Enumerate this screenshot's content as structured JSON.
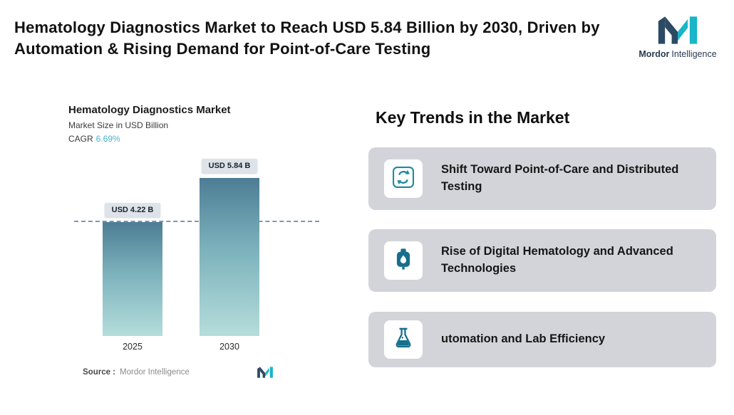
{
  "header": {
    "title": "Hematology Diagnostics Market to Reach USD 5.84 Billion by 2030, Driven by Automation & Rising Demand for Point-of-Care Testing",
    "brand_bold": "Mordor",
    "brand_regular": "Intelligence"
  },
  "chart": {
    "title": "Hematology Diagnostics Market",
    "subtitle": "Market Size in USD Billion",
    "cagr_label": "CAGR",
    "cagr_value": "6.69%",
    "source_label": "Source :",
    "source_value": "Mordor Intelligence"
  },
  "chart_data": {
    "type": "bar",
    "title": "Hematology Diagnostics Market",
    "ylabel": "Market Size in USD Billion",
    "categories": [
      "2025",
      "2030"
    ],
    "values": [
      4.22,
      5.84
    ],
    "bar_labels": [
      "USD 4.22 B",
      "USD 5.84 B"
    ],
    "cagr": "6.69%",
    "reference_line": 4.22,
    "ylim": [
      0,
      6.5
    ],
    "legend": "none",
    "grid": "off",
    "colors": {
      "bar_top": "#4d7d95",
      "bar_bottom": "#b5dddb",
      "accent_teal": "#47b7c7",
      "label_box": "#dde3e9"
    }
  },
  "trends": {
    "heading": "Key Trends in the Market",
    "items": [
      {
        "icon": "cycle-arrows-icon",
        "text": "Shift Toward Point-of-Care and Distributed Testing"
      },
      {
        "icon": "blood-bag-icon",
        "text": "Rise of Digital Hematology and Advanced Technologies"
      },
      {
        "icon": "flask-icon",
        "text": "utomation and Lab Efficiency"
      }
    ]
  }
}
